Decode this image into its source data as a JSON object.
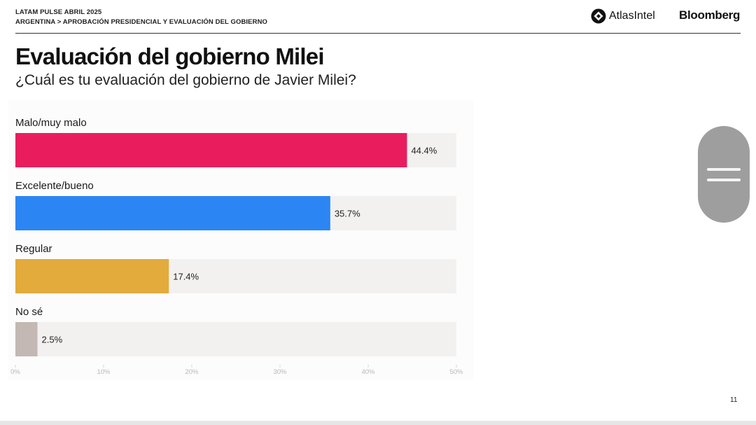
{
  "header": {
    "line1": "LATAM PULSE ABRIL 2025",
    "line2": "ARGENTINA > APROBACIÓN PRESIDENCIAL Y EVALUACIÓN DEL GOBIERNO"
  },
  "brands": {
    "atlas": "AtlasIntel",
    "bloomberg": "Bloomberg"
  },
  "title": "Evaluación del gobierno Milei",
  "subtitle": "¿Cuál es tu evaluación del gobierno de Javier Milei?",
  "page_number": "11",
  "chart_data": {
    "type": "bar",
    "orientation": "horizontal",
    "categories": [
      "Malo/muy malo",
      "Excelente/bueno",
      "Regular",
      "No sé"
    ],
    "values": [
      44.4,
      35.7,
      17.4,
      2.5
    ],
    "value_labels": [
      "44.4%",
      "35.7%",
      "17.4%",
      "2.5%"
    ],
    "colors": [
      "#e91d5e",
      "#2b86f3",
      "#e2ab3c",
      "#c3b8b3"
    ],
    "track_color": "#f2f1ef",
    "xlim": [
      0,
      50
    ],
    "x_ticks": [
      0,
      10,
      20,
      30,
      40,
      50
    ],
    "x_tick_labels": [
      "0%",
      "10%",
      "20%",
      "30%",
      "40%",
      "50%"
    ]
  }
}
